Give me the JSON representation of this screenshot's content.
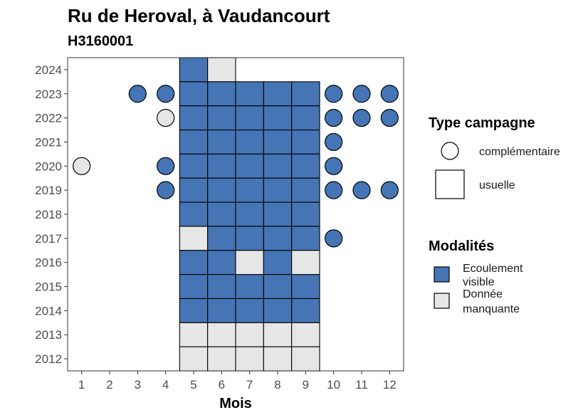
{
  "chart_data": {
    "type": "heatmap",
    "title": "Ru de Heroval, à Vaudancourt",
    "subtitle": "H3160001",
    "xlabel": "Mois",
    "ylabel": "",
    "x_ticks": [
      "1",
      "2",
      "3",
      "4",
      "5",
      "6",
      "7",
      "8",
      "9",
      "10",
      "11",
      "12"
    ],
    "y_ticks": [
      "2012",
      "2013",
      "2014",
      "2015",
      "2016",
      "2017",
      "2018",
      "2019",
      "2020",
      "2021",
      "2022",
      "2023",
      "2024"
    ],
    "xlim": [
      0.5,
      12.5
    ],
    "ylim": [
      2011.5,
      2024.5
    ],
    "colors": {
      "Ecoulement visible": "#4575b4",
      "Donnée manquante": "#e6e6e6"
    },
    "legend_type": {
      "title": "Type campagne",
      "entries": [
        "complémentaire",
        "usuelle"
      ]
    },
    "legend_modalite": {
      "title": "Modalités",
      "entries": [
        {
          "name": "Ecoulement visible",
          "lines": [
            "Ecoulement",
            "visible"
          ]
        },
        {
          "name": "Donnée manquante",
          "lines": [
            "Donnée",
            "manquante"
          ]
        }
      ]
    },
    "usuelle": [
      {
        "year": 2024,
        "month": 5,
        "value": "Ecoulement visible"
      },
      {
        "year": 2024,
        "month": 6,
        "value": "Donnée manquante"
      },
      {
        "year": 2023,
        "month": 5,
        "value": "Ecoulement visible"
      },
      {
        "year": 2023,
        "month": 6,
        "value": "Ecoulement visible"
      },
      {
        "year": 2023,
        "month": 7,
        "value": "Ecoulement visible"
      },
      {
        "year": 2023,
        "month": 8,
        "value": "Ecoulement visible"
      },
      {
        "year": 2023,
        "month": 9,
        "value": "Ecoulement visible"
      },
      {
        "year": 2022,
        "month": 5,
        "value": "Ecoulement visible"
      },
      {
        "year": 2022,
        "month": 6,
        "value": "Ecoulement visible"
      },
      {
        "year": 2022,
        "month": 7,
        "value": "Ecoulement visible"
      },
      {
        "year": 2022,
        "month": 8,
        "value": "Ecoulement visible"
      },
      {
        "year": 2022,
        "month": 9,
        "value": "Ecoulement visible"
      },
      {
        "year": 2021,
        "month": 5,
        "value": "Ecoulement visible"
      },
      {
        "year": 2021,
        "month": 6,
        "value": "Ecoulement visible"
      },
      {
        "year": 2021,
        "month": 7,
        "value": "Ecoulement visible"
      },
      {
        "year": 2021,
        "month": 8,
        "value": "Ecoulement visible"
      },
      {
        "year": 2021,
        "month": 9,
        "value": "Ecoulement visible"
      },
      {
        "year": 2020,
        "month": 5,
        "value": "Ecoulement visible"
      },
      {
        "year": 2020,
        "month": 6,
        "value": "Ecoulement visible"
      },
      {
        "year": 2020,
        "month": 7,
        "value": "Ecoulement visible"
      },
      {
        "year": 2020,
        "month": 8,
        "value": "Ecoulement visible"
      },
      {
        "year": 2020,
        "month": 9,
        "value": "Ecoulement visible"
      },
      {
        "year": 2019,
        "month": 5,
        "value": "Ecoulement visible"
      },
      {
        "year": 2019,
        "month": 6,
        "value": "Ecoulement visible"
      },
      {
        "year": 2019,
        "month": 7,
        "value": "Ecoulement visible"
      },
      {
        "year": 2019,
        "month": 8,
        "value": "Ecoulement visible"
      },
      {
        "year": 2019,
        "month": 9,
        "value": "Ecoulement visible"
      },
      {
        "year": 2018,
        "month": 5,
        "value": "Ecoulement visible"
      },
      {
        "year": 2018,
        "month": 6,
        "value": "Ecoulement visible"
      },
      {
        "year": 2018,
        "month": 7,
        "value": "Ecoulement visible"
      },
      {
        "year": 2018,
        "month": 8,
        "value": "Ecoulement visible"
      },
      {
        "year": 2018,
        "month": 9,
        "value": "Ecoulement visible"
      },
      {
        "year": 2017,
        "month": 5,
        "value": "Donnée manquante"
      },
      {
        "year": 2017,
        "month": 6,
        "value": "Ecoulement visible"
      },
      {
        "year": 2017,
        "month": 7,
        "value": "Ecoulement visible"
      },
      {
        "year": 2017,
        "month": 8,
        "value": "Ecoulement visible"
      },
      {
        "year": 2017,
        "month": 9,
        "value": "Ecoulement visible"
      },
      {
        "year": 2016,
        "month": 5,
        "value": "Ecoulement visible"
      },
      {
        "year": 2016,
        "month": 6,
        "value": "Ecoulement visible"
      },
      {
        "year": 2016,
        "month": 7,
        "value": "Donnée manquante"
      },
      {
        "year": 2016,
        "month": 8,
        "value": "Ecoulement visible"
      },
      {
        "year": 2016,
        "month": 9,
        "value": "Donnée manquante"
      },
      {
        "year": 2015,
        "month": 5,
        "value": "Ecoulement visible"
      },
      {
        "year": 2015,
        "month": 6,
        "value": "Ecoulement visible"
      },
      {
        "year": 2015,
        "month": 7,
        "value": "Ecoulement visible"
      },
      {
        "year": 2015,
        "month": 8,
        "value": "Ecoulement visible"
      },
      {
        "year": 2015,
        "month": 9,
        "value": "Ecoulement visible"
      },
      {
        "year": 2014,
        "month": 5,
        "value": "Ecoulement visible"
      },
      {
        "year": 2014,
        "month": 6,
        "value": "Ecoulement visible"
      },
      {
        "year": 2014,
        "month": 7,
        "value": "Ecoulement visible"
      },
      {
        "year": 2014,
        "month": 8,
        "value": "Ecoulement visible"
      },
      {
        "year": 2014,
        "month": 9,
        "value": "Ecoulement visible"
      },
      {
        "year": 2013,
        "month": 5,
        "value": "Donnée manquante"
      },
      {
        "year": 2013,
        "month": 6,
        "value": "Donnée manquante"
      },
      {
        "year": 2013,
        "month": 7,
        "value": "Donnée manquante"
      },
      {
        "year": 2013,
        "month": 8,
        "value": "Donnée manquante"
      },
      {
        "year": 2013,
        "month": 9,
        "value": "Donnée manquante"
      },
      {
        "year": 2012,
        "month": 5,
        "value": "Donnée manquante"
      },
      {
        "year": 2012,
        "month": 6,
        "value": "Donnée manquante"
      },
      {
        "year": 2012,
        "month": 7,
        "value": "Donnée manquante"
      },
      {
        "year": 2012,
        "month": 8,
        "value": "Donnée manquante"
      },
      {
        "year": 2012,
        "month": 9,
        "value": "Donnée manquante"
      }
    ],
    "complementaire": [
      {
        "year": 2023,
        "month": 3,
        "value": "Ecoulement visible"
      },
      {
        "year": 2023,
        "month": 4,
        "value": "Ecoulement visible"
      },
      {
        "year": 2023,
        "month": 10,
        "value": "Ecoulement visible"
      },
      {
        "year": 2023,
        "month": 11,
        "value": "Ecoulement visible"
      },
      {
        "year": 2023,
        "month": 12,
        "value": "Ecoulement visible"
      },
      {
        "year": 2022,
        "month": 4,
        "value": "Donnée manquante"
      },
      {
        "year": 2022,
        "month": 10,
        "value": "Ecoulement visible"
      },
      {
        "year": 2022,
        "month": 11,
        "value": "Ecoulement visible"
      },
      {
        "year": 2022,
        "month": 12,
        "value": "Ecoulement visible"
      },
      {
        "year": 2021,
        "month": 10,
        "value": "Ecoulement visible"
      },
      {
        "year": 2020,
        "month": 1,
        "value": "Donnée manquante"
      },
      {
        "year": 2020,
        "month": 4,
        "value": "Ecoulement visible"
      },
      {
        "year": 2020,
        "month": 10,
        "value": "Ecoulement visible"
      },
      {
        "year": 2019,
        "month": 4,
        "value": "Ecoulement visible"
      },
      {
        "year": 2019,
        "month": 10,
        "value": "Ecoulement visible"
      },
      {
        "year": 2019,
        "month": 11,
        "value": "Ecoulement visible"
      },
      {
        "year": 2019,
        "month": 12,
        "value": "Ecoulement visible"
      },
      {
        "year": 2017,
        "month": 10,
        "value": "Ecoulement visible"
      }
    ]
  }
}
